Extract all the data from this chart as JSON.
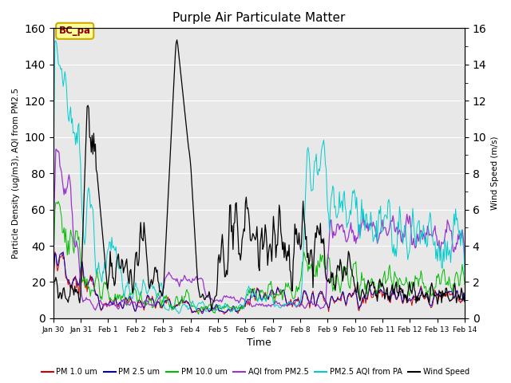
{
  "title": "Purple Air Particulate Matter",
  "xlabel": "Time",
  "ylabel_left": "Particle Density (ug/m3), AQI from PM2.5",
  "ylabel_right": "Wind Speed (m/s)",
  "ylim_left": [
    0,
    160
  ],
  "ylim_right": [
    0,
    16
  ],
  "yticks_left": [
    0,
    20,
    40,
    60,
    80,
    100,
    120,
    140,
    160
  ],
  "yticks_right": [
    0,
    2,
    4,
    6,
    8,
    10,
    12,
    14,
    16
  ],
  "annotation_text": "BC_pa",
  "background_color": "#e8e8e8",
  "line_colors": {
    "pm1": "#cc0000",
    "pm25": "#0000bb",
    "pm10": "#00bb00",
    "aqi_pm25": "#9933cc",
    "aqi_pa": "#00cccc",
    "wind": "#000000"
  },
  "legend_labels": [
    "PM 1.0 um",
    "PM 2.5 um",
    "PM 10.0 um",
    "AQI from PM2.5",
    "PM2.5 AQI from PA",
    "Wind Speed"
  ],
  "tick_labels": [
    "Jan 30",
    "Jan 31",
    "Feb 1",
    "Feb 2",
    "Feb 3",
    "Feb 4",
    "Feb 5",
    "Feb 6",
    "Feb 7",
    "Feb 8",
    "Feb 9",
    "Feb 10",
    "Feb 11",
    "Feb 12",
    "Feb 13",
    "Feb 14"
  ],
  "seed": 42
}
